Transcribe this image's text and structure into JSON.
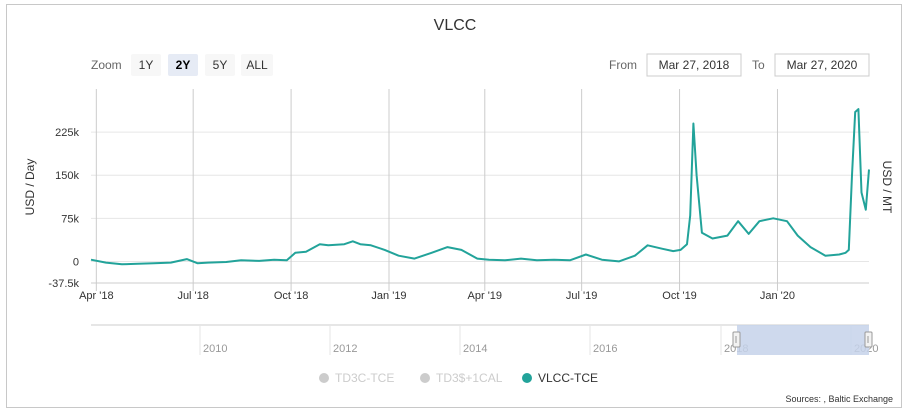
{
  "chart_data": {
    "type": "line",
    "title": "VLCC",
    "ylabel_left": "USD / Day",
    "ylabel_right": "USD / MT",
    "zoom": {
      "label": "Zoom",
      "buttons": [
        "1Y",
        "2Y",
        "5Y",
        "ALL"
      ],
      "selected": "2Y"
    },
    "range": {
      "from_label": "From",
      "from_value": "Mar 27, 2018",
      "to_label": "To",
      "to_value": "Mar 27, 2020"
    },
    "x_ticks": [
      "Apr '18",
      "Jul '18",
      "Oct '18",
      "Jan '19",
      "Apr '19",
      "Jul '19",
      "Oct '19",
      "Jan '20"
    ],
    "y_ticks": [
      "225k",
      "150k",
      "75k",
      "0",
      "-37.5k"
    ],
    "y_tick_values": [
      225000,
      150000,
      75000,
      0,
      -37500
    ],
    "ylim": [
      -37500,
      300000
    ],
    "xlim": [
      "2018-03-27",
      "2020-03-27"
    ],
    "navigator": {
      "year_labels": [
        "2010",
        "2012",
        "2014",
        "2016",
        "2018",
        "2020"
      ],
      "selected_range": [
        "2018-03-27",
        "2020-03-27"
      ]
    },
    "legend": [
      {
        "name": "TD3C-TCE",
        "active": false,
        "color": "#cccccc"
      },
      {
        "name": "TD3$+1CAL",
        "active": false,
        "color": "#cccccc"
      },
      {
        "name": "VLCC-TCE",
        "active": true,
        "color": "#22a39a"
      }
    ],
    "credits": "Sources: , Baltic Exchange",
    "series": [
      {
        "name": "VLCC-TCE",
        "color": "#22a39a",
        "x": [
          "2018-03-27",
          "2018-04-10",
          "2018-04-25",
          "2018-05-10",
          "2018-05-25",
          "2018-06-10",
          "2018-06-25",
          "2018-07-05",
          "2018-07-15",
          "2018-08-01",
          "2018-08-15",
          "2018-09-01",
          "2018-09-15",
          "2018-09-27",
          "2018-10-05",
          "2018-10-15",
          "2018-10-28",
          "2018-11-05",
          "2018-11-20",
          "2018-11-28",
          "2018-12-05",
          "2018-12-15",
          "2018-12-28",
          "2019-01-10",
          "2019-01-25",
          "2019-02-10",
          "2019-02-25",
          "2019-03-10",
          "2019-03-25",
          "2019-04-05",
          "2019-04-20",
          "2019-05-05",
          "2019-05-20",
          "2019-06-05",
          "2019-06-20",
          "2019-07-05",
          "2019-07-20",
          "2019-08-05",
          "2019-08-20",
          "2019-09-01",
          "2019-09-15",
          "2019-09-25",
          "2019-10-02",
          "2019-10-08",
          "2019-10-11",
          "2019-10-14",
          "2019-10-17",
          "2019-10-22",
          "2019-11-01",
          "2019-11-15",
          "2019-11-25",
          "2019-12-05",
          "2019-12-15",
          "2019-12-28",
          "2020-01-10",
          "2020-01-20",
          "2020-02-01",
          "2020-02-15",
          "2020-02-28",
          "2020-03-05",
          "2020-03-08",
          "2020-03-11",
          "2020-03-14",
          "2020-03-17",
          "2020-03-20",
          "2020-03-24",
          "2020-03-27"
        ],
        "values": [
          3000,
          -2000,
          -5000,
          -4000,
          -3000,
          -2000,
          4000,
          -3000,
          -2000,
          -1000,
          2000,
          1000,
          3000,
          2000,
          15000,
          17000,
          30000,
          28000,
          30000,
          35000,
          30000,
          28000,
          20000,
          10000,
          5000,
          15000,
          25000,
          20000,
          5000,
          3000,
          2000,
          5000,
          2000,
          3000,
          2000,
          12000,
          3000,
          0,
          10000,
          28000,
          22000,
          18000,
          20000,
          30000,
          80000,
          240000,
          150000,
          50000,
          40000,
          45000,
          70000,
          48000,
          70000,
          75000,
          70000,
          45000,
          25000,
          10000,
          12000,
          15000,
          20000,
          150000,
          260000,
          265000,
          120000,
          90000,
          160000
        ]
      }
    ]
  }
}
